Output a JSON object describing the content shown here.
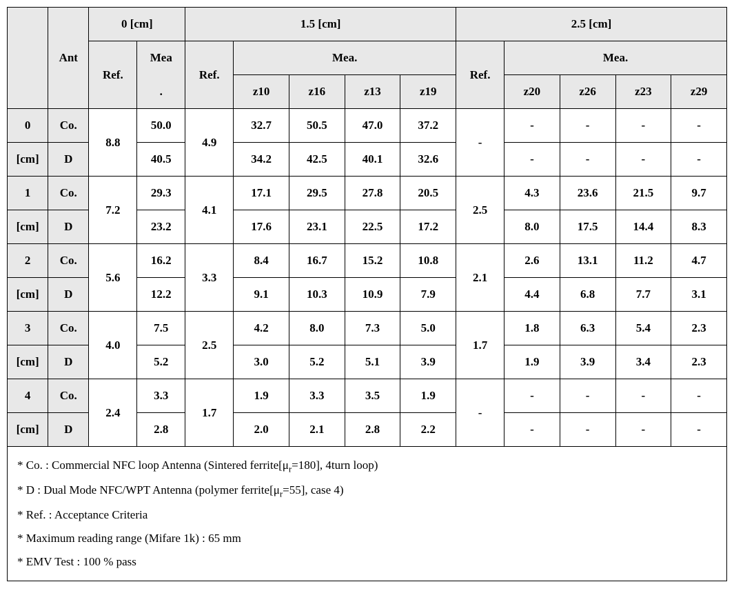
{
  "header": {
    "col_groups": [
      "0 [cm]",
      "1.5 [cm]",
      "2.5 [cm]"
    ],
    "ant": "Ant",
    "ref": "Ref.",
    "mea": "Mea",
    "mea_dot": ".",
    "mea_full": "Mea.",
    "z_labels_15": [
      "z10",
      "z16",
      "z13",
      "z19"
    ],
    "z_labels_25": [
      "z20",
      "z26",
      "z23",
      "z29"
    ]
  },
  "row_labels": [
    "0",
    "1",
    "2",
    "3",
    "4"
  ],
  "cm": "[cm]",
  "ant_types": {
    "co": "Co.",
    "d": "D"
  },
  "rows": [
    {
      "ref0": "8.8",
      "mea0_co": "50.0",
      "mea0_d": "40.5",
      "ref15": "4.9",
      "co15": [
        "32.7",
        "50.5",
        "47.0",
        "37.2"
      ],
      "d15": [
        "34.2",
        "42.5",
        "40.1",
        "32.6"
      ],
      "ref25": "-",
      "co25": [
        "-",
        "-",
        "-",
        "-"
      ],
      "d25": [
        "-",
        "-",
        "-",
        "-"
      ]
    },
    {
      "ref0": "7.2",
      "mea0_co": "29.3",
      "mea0_d": "23.2",
      "ref15": "4.1",
      "co15": [
        "17.1",
        "29.5",
        "27.8",
        "20.5"
      ],
      "d15": [
        "17.6",
        "23.1",
        "22.5",
        "17.2"
      ],
      "ref25": "2.5",
      "co25": [
        "4.3",
        "23.6",
        "21.5",
        "9.7"
      ],
      "d25": [
        "8.0",
        "17.5",
        "14.4",
        "8.3"
      ]
    },
    {
      "ref0": "5.6",
      "mea0_co": "16.2",
      "mea0_d": "12.2",
      "ref15": "3.3",
      "co15": [
        "8.4",
        "16.7",
        "15.2",
        "10.8"
      ],
      "d15": [
        "9.1",
        "10.3",
        "10.9",
        "7.9"
      ],
      "ref25": "2.1",
      "co25": [
        "2.6",
        "13.1",
        "11.2",
        "4.7"
      ],
      "d25": [
        "4.4",
        "6.8",
        "7.7",
        "3.1"
      ]
    },
    {
      "ref0": "4.0",
      "mea0_co": "7.5",
      "mea0_d": "5.2",
      "ref15": "2.5",
      "co15": [
        "4.2",
        "8.0",
        "7.3",
        "5.0"
      ],
      "d15": [
        "3.0",
        "5.2",
        "5.1",
        "3.9"
      ],
      "ref25": "1.7",
      "co25": [
        "1.8",
        "6.3",
        "5.4",
        "2.3"
      ],
      "d25": [
        "1.9",
        "3.9",
        "3.4",
        "2.3"
      ]
    },
    {
      "ref0": "2.4",
      "mea0_co": "3.3",
      "mea0_d": "2.8",
      "ref15": "1.7",
      "co15": [
        "1.9",
        "3.3",
        "3.5",
        "1.9"
      ],
      "d15": [
        "2.0",
        "2.1",
        "2.8",
        "2.2"
      ],
      "ref25": "-",
      "co25": [
        "-",
        "-",
        "-",
        "-"
      ],
      "d25": [
        "-",
        "-",
        "-",
        "-"
      ]
    }
  ],
  "notes": {
    "n1_pre": "* Co. : Commercial NFC loop Antenna (Sintered ferrite[",
    "n1_mu": "μ",
    "n1_sub": "r",
    "n1_post": "=180], 4turn loop)",
    "n2_pre": "* D : Dual Mode NFC/WPT Antenna (polymer ferrite[",
    "n2_mu": "μ",
    "n2_sub": "r",
    "n2_post": "=55], case 4)",
    "n3": "* Ref. : Acceptance Criteria",
    "n4": "* Maximum reading range (Mifare 1k) : 65 mm",
    "n5": "* EMV Test : 100 % pass"
  },
  "style": {
    "header_bg": "#e8e8e8",
    "border_color": "#000000",
    "text_color": "#000000",
    "font_family": "Times New Roman"
  }
}
